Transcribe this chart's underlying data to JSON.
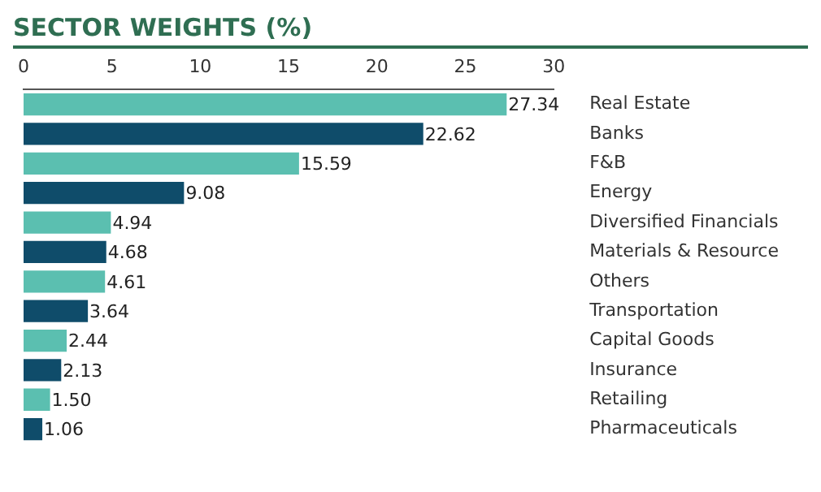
{
  "chart_data": {
    "type": "bar",
    "title": "SECTOR WEIGHTS (%)",
    "orientation": "horizontal",
    "categories": [
      "Real Estate",
      "Banks",
      "F&B",
      "Energy",
      "Diversified Financials",
      "Materials & Resource",
      "Others",
      "Transportation",
      "Capital Goods",
      "Insurance",
      "Retailing",
      "Pharmaceuticals"
    ],
    "values": [
      27.34,
      22.62,
      15.59,
      9.08,
      4.94,
      4.68,
      4.61,
      3.64,
      2.44,
      2.13,
      1.5,
      1.06
    ],
    "value_labels": [
      "27.34",
      "22.62",
      "15.59",
      "9.08",
      "4.94",
      "4.68",
      "4.61",
      "3.64",
      "2.44",
      "2.13",
      "1.50",
      "1.06"
    ],
    "colors": [
      "#5bbfb0",
      "#0f4c6a",
      "#5bbfb0",
      "#0f4c6a",
      "#5bbfb0",
      "#0f4c6a",
      "#5bbfb0",
      "#0f4c6a",
      "#5bbfb0",
      "#0f4c6a",
      "#5bbfb0",
      "#0f4c6a"
    ],
    "xlim": [
      0,
      30
    ],
    "xticks": [
      0,
      5,
      10,
      15,
      20,
      25,
      30
    ]
  }
}
